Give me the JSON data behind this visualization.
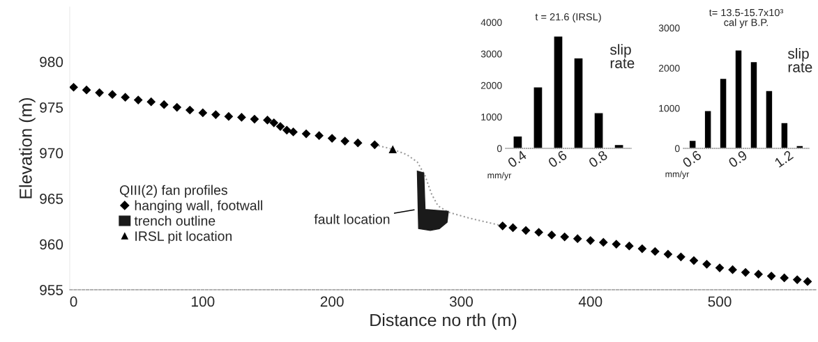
{
  "chart_data": [
    {
      "type": "scatter",
      "xlabel": "Distance no rth (m)",
      "ylabel": "Elevation (m)",
      "legend_title": "QIII(2) fan profiles",
      "legend": "lower left",
      "xlim": [
        -3,
        575
      ],
      "xticks": [
        0,
        100,
        200,
        300,
        400,
        500
      ],
      "ylim": [
        955,
        986
      ],
      "yticks": [
        955,
        960,
        965,
        970,
        975,
        980
      ],
      "series": [
        {
          "type": "line",
          "color": "#9a9a9a",
          "line_style": "dotted",
          "marker": "none",
          "x": [
            233,
            247,
            258,
            266,
            272,
            277,
            282,
            290,
            305,
            320,
            332
          ],
          "values": [
            970.9,
            970.4,
            969.8,
            969.0,
            967.5,
            965.5,
            964.2,
            963.5,
            962.9,
            962.4,
            962.0
          ]
        },
        {
          "name": "hanging wall, footwall",
          "type": "scatter",
          "color": "#000000",
          "marker": "diamond",
          "x": [
            0,
            10,
            20,
            30,
            40,
            50,
            60,
            70,
            80,
            90,
            100,
            110,
            120,
            130,
            140,
            150,
            155,
            160,
            165,
            170,
            180,
            190,
            200,
            210,
            220,
            233,
            332,
            340,
            350,
            360,
            370,
            380,
            390,
            400,
            410,
            420,
            430,
            440,
            450,
            460,
            470,
            480,
            490,
            500,
            510,
            520,
            530,
            540,
            550,
            560,
            568
          ],
          "values": [
            977.2,
            976.9,
            976.6,
            976.4,
            976.1,
            975.8,
            975.6,
            975.3,
            975.0,
            974.7,
            974.4,
            974.2,
            974.0,
            973.9,
            973.7,
            973.6,
            973.3,
            972.9,
            972.5,
            972.3,
            972.1,
            971.9,
            971.6,
            971.3,
            971.1,
            970.9,
            962.0,
            961.8,
            961.5,
            961.3,
            961.0,
            960.8,
            960.6,
            960.4,
            960.2,
            960.0,
            959.8,
            959.5,
            959.2,
            958.9,
            958.6,
            958.2,
            957.8,
            957.4,
            957.2,
            956.9,
            956.7,
            956.5,
            956.3,
            956.1,
            955.9
          ]
        },
        {
          "name": "trench outline",
          "type": "area",
          "color": "#1a1a1a",
          "x": [
            266,
            271,
            272,
            290,
            289,
            283,
            276,
            267,
            266
          ],
          "values": [
            968.0,
            967.8,
            963.8,
            963.6,
            962.4,
            961.7,
            961.5,
            961.7,
            968.0
          ]
        },
        {
          "name": "IRSL pit location",
          "type": "scatter",
          "color": "#000000",
          "marker": "triangle",
          "x": [
            247
          ],
          "values": [
            970.4
          ]
        }
      ],
      "annotations": [
        {
          "text": "fault location",
          "x": 265,
          "y": 963.8
        }
      ]
    },
    {
      "type": "bar",
      "title": "t = 21.6 (IRSL)",
      "xlabel": "mm/yr",
      "categories": [
        "0.4",
        null,
        "0.6",
        null,
        "0.8",
        null
      ],
      "values": [
        390,
        1950,
        3560,
        2870,
        1130,
        120
      ],
      "color": "#000000",
      "ylim": [
        0,
        4000
      ],
      "yticks": [
        0,
        1000,
        2000,
        3000,
        4000
      ],
      "annotations": [
        "slip rate"
      ]
    },
    {
      "type": "bar",
      "title": "t= 13.5-15.7x10³",
      "subtitle": "cal yr B.P.",
      "xlabel": "mm/yr",
      "categories": [
        "0.6",
        null,
        null,
        "0.9",
        null,
        null,
        "1.2",
        null
      ],
      "values": [
        200,
        940,
        1740,
        2450,
        2160,
        1440,
        640,
        70
      ],
      "color": "#000000",
      "ylim": [
        0,
        3000
      ],
      "yticks": [
        0,
        1000,
        2000,
        3000
      ],
      "annotations": [
        "slip rate"
      ]
    }
  ]
}
